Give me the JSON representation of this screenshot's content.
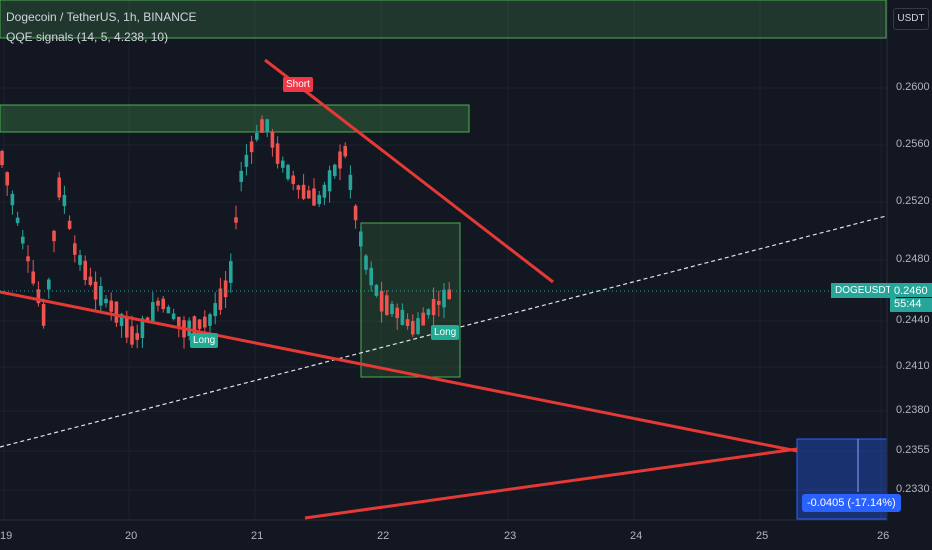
{
  "header": {
    "symbol_line": "Dogecoin / TetherUS, 1h, BINANCE",
    "indicator_line": "QQE signals (14, 5, 4.238, 10)"
  },
  "currency_label": "USDT",
  "price_tag": {
    "symbol": "DOGEUSDT",
    "price": "0.2460",
    "countdown": "55:44"
  },
  "measure_label": "-0.0405 (-17.14%)",
  "signals": [
    {
      "label": "Short",
      "color": "#f23645"
    },
    {
      "label": "Long",
      "color": "#22ab94"
    },
    {
      "label": "Long",
      "color": "#22ab94"
    }
  ],
  "colors": {
    "up": "#26a69a",
    "down": "#ef5350",
    "trendline": "#e53935",
    "zone": "#4caf50",
    "measure": "#2962ff"
  },
  "chart_data": {
    "type": "candlestick",
    "title": "Dogecoin / TetherUS, 1h, BINANCE",
    "x_ticks": [
      "19",
      "20",
      "21",
      "22",
      "23",
      "24",
      "25",
      "26"
    ],
    "y_ticks": [
      "0.2600",
      "0.2560",
      "0.2520",
      "0.2480",
      "0.2440",
      "0.2410",
      "0.2380",
      "0.2355",
      "0.2330"
    ],
    "current_price": 0.246,
    "ylim": [
      0.2315,
      0.2655
    ]
  }
}
